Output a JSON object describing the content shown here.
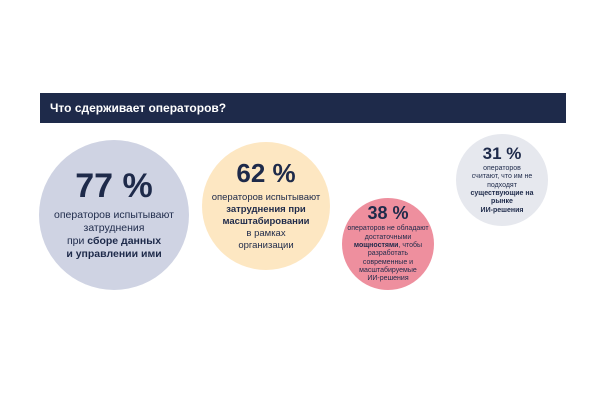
{
  "colors": {
    "header_bg": "#1e2a4a",
    "bubble_1": "#cfd3e3",
    "bubble_2": "#fde7c2",
    "bubble_3": "#ee8f9e",
    "bubble_4": "#e6e8ee"
  },
  "chart_data": {
    "type": "bubble",
    "title": "Что сдерживает операторов?",
    "items": [
      {
        "percent": "77 %",
        "value": 77,
        "lines": [
          "операторов испытывают",
          "затруднения",
          "при сборе данных",
          "и управлении ими"
        ]
      },
      {
        "percent": "62 %",
        "value": 62,
        "lines": [
          "операторов испытывают",
          "затруднения при",
          "масштабировании",
          "в рамках",
          "организации"
        ]
      },
      {
        "percent": "38 %",
        "value": 38,
        "lines": [
          "операторов не обладают",
          "достаточными",
          "мощностями, чтобы",
          "разработать",
          "современные и",
          "масштабируемые",
          "ИИ-решения"
        ]
      },
      {
        "percent": "31 %",
        "value": 31,
        "lines": [
          "операторов",
          "считают, что им не",
          "подходят",
          "существующие на",
          "рынке",
          "ИИ-решения"
        ]
      }
    ]
  }
}
